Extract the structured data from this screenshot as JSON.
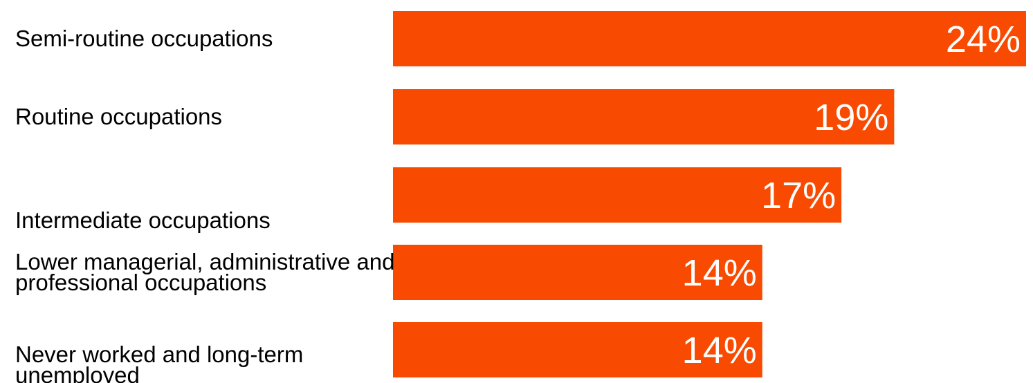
{
  "chart_data": {
    "type": "bar",
    "orientation": "horizontal",
    "categories": [
      "Semi-routine occupations",
      "Routine occupations",
      "Intermediate occupations",
      "Lower managerial, administrative and professional occupations",
      "Never worked and long-term unemployed"
    ],
    "category_lines": [
      [
        "Semi-routine occupations"
      ],
      [
        "Routine occupations"
      ],
      [
        "Intermediate occupations"
      ],
      [
        "Lower managerial, administrative and",
        "professional occupations"
      ],
      [
        "Never worked and long-term",
        "unemployed"
      ]
    ],
    "label_valign": [
      "center",
      "center",
      "bottom",
      "center",
      "bottom"
    ],
    "values": [
      24,
      19,
      17,
      14,
      14
    ],
    "value_labels": [
      "24%",
      "19%",
      "17%",
      "14%",
      "14%"
    ],
    "title": "",
    "xlabel": "",
    "ylabel": "",
    "xlim": [
      0,
      24
    ],
    "grid": false,
    "legend": "none",
    "colors": {
      "bar": "#F84A00",
      "value_text": "#FFFFFF",
      "label_text": "#000000"
    }
  }
}
